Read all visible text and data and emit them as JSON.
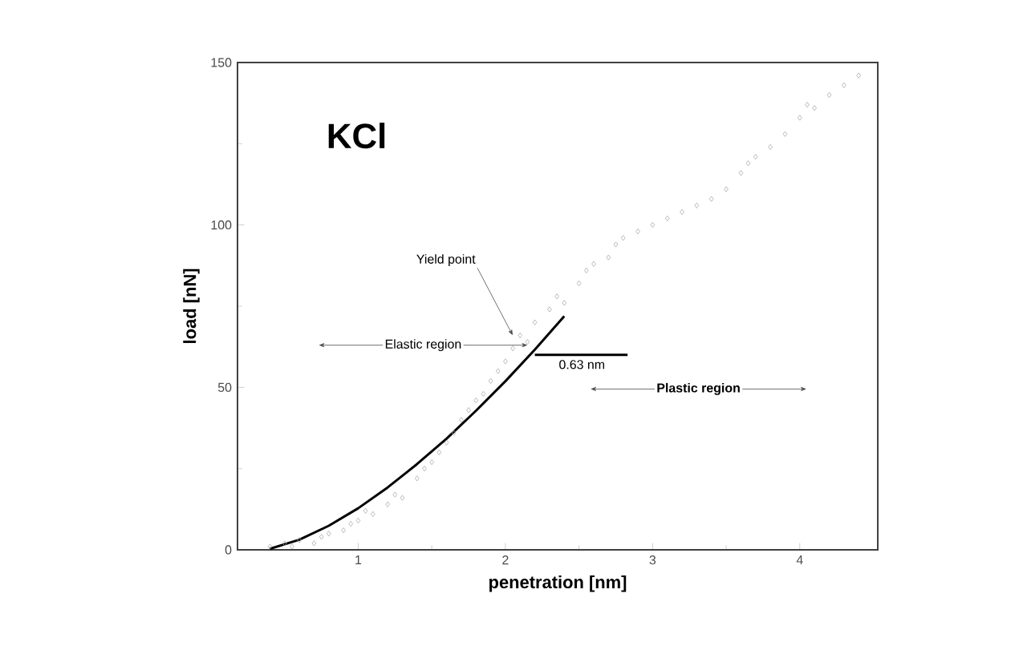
{
  "chart_data": {
    "type": "scatter",
    "title": "KCl",
    "xlabel": "penetration [nm]",
    "ylabel": "load [nN]",
    "xlim": [
      0.18,
      4.53
    ],
    "ylim": [
      0,
      150
    ],
    "xticks": [
      1,
      2,
      3,
      4
    ],
    "yticks": [
      0,
      50,
      100,
      150
    ],
    "grid": false,
    "series": [
      {
        "marker": "diamond",
        "color": "#a8a8a8",
        "x": [
          0.4,
          0.5,
          0.55,
          0.6,
          0.7,
          0.75,
          0.8,
          0.9,
          0.95,
          1.0,
          1.05,
          1.1,
          1.2,
          1.25,
          1.3,
          1.4,
          1.45,
          1.5,
          1.55,
          1.6,
          1.65,
          1.7,
          1.75,
          1.8,
          1.85,
          1.9,
          1.95,
          2.0,
          2.05,
          2.1,
          2.15,
          2.2,
          2.3,
          2.35,
          2.4,
          2.5,
          2.55,
          2.6,
          2.7,
          2.75,
          2.8,
          2.9,
          3.0,
          3.1,
          3.2,
          3.3,
          3.4,
          3.5,
          3.6,
          3.65,
          3.7,
          3.8,
          3.9,
          4.0,
          4.05,
          4.1,
          4.2,
          4.3,
          4.4
        ],
        "values": [
          1,
          2,
          1,
          3,
          2,
          4,
          5,
          6,
          8,
          9,
          12,
          11,
          14,
          17,
          16,
          22,
          25,
          27,
          30,
          33,
          36,
          40,
          43,
          46,
          48,
          52,
          55,
          58,
          62,
          66,
          64,
          70,
          74,
          78,
          76,
          82,
          86,
          88,
          90,
          94,
          96,
          98,
          100,
          102,
          104,
          106,
          108,
          111,
          116,
          119,
          121,
          124,
          128,
          133,
          137,
          136,
          140,
          143,
          146
        ]
      },
      {
        "type": "line",
        "marker": "none",
        "line_style": "solid",
        "color": "#000000",
        "x": [
          0.4,
          0.6,
          0.8,
          1.0,
          1.2,
          1.4,
          1.6,
          1.8,
          2.0,
          2.2,
          2.4
        ],
        "values": [
          0.3,
          3.1,
          7.4,
          12.8,
          19.2,
          26.4,
          34.2,
          42.8,
          51.9,
          61.6,
          71.9
        ]
      },
      {
        "type": "line",
        "marker": "none",
        "line_style": "solid",
        "color": "#000000",
        "x": [
          2.2,
          2.83
        ],
        "values": [
          60,
          60
        ]
      }
    ],
    "annotations": [
      {
        "text": "Yield point",
        "x": 2.05,
        "y": 66
      },
      "Elastic region",
      {
        "text": "0.63 nm",
        "x": 2.52,
        "y": 60
      },
      "Plastic region"
    ]
  }
}
